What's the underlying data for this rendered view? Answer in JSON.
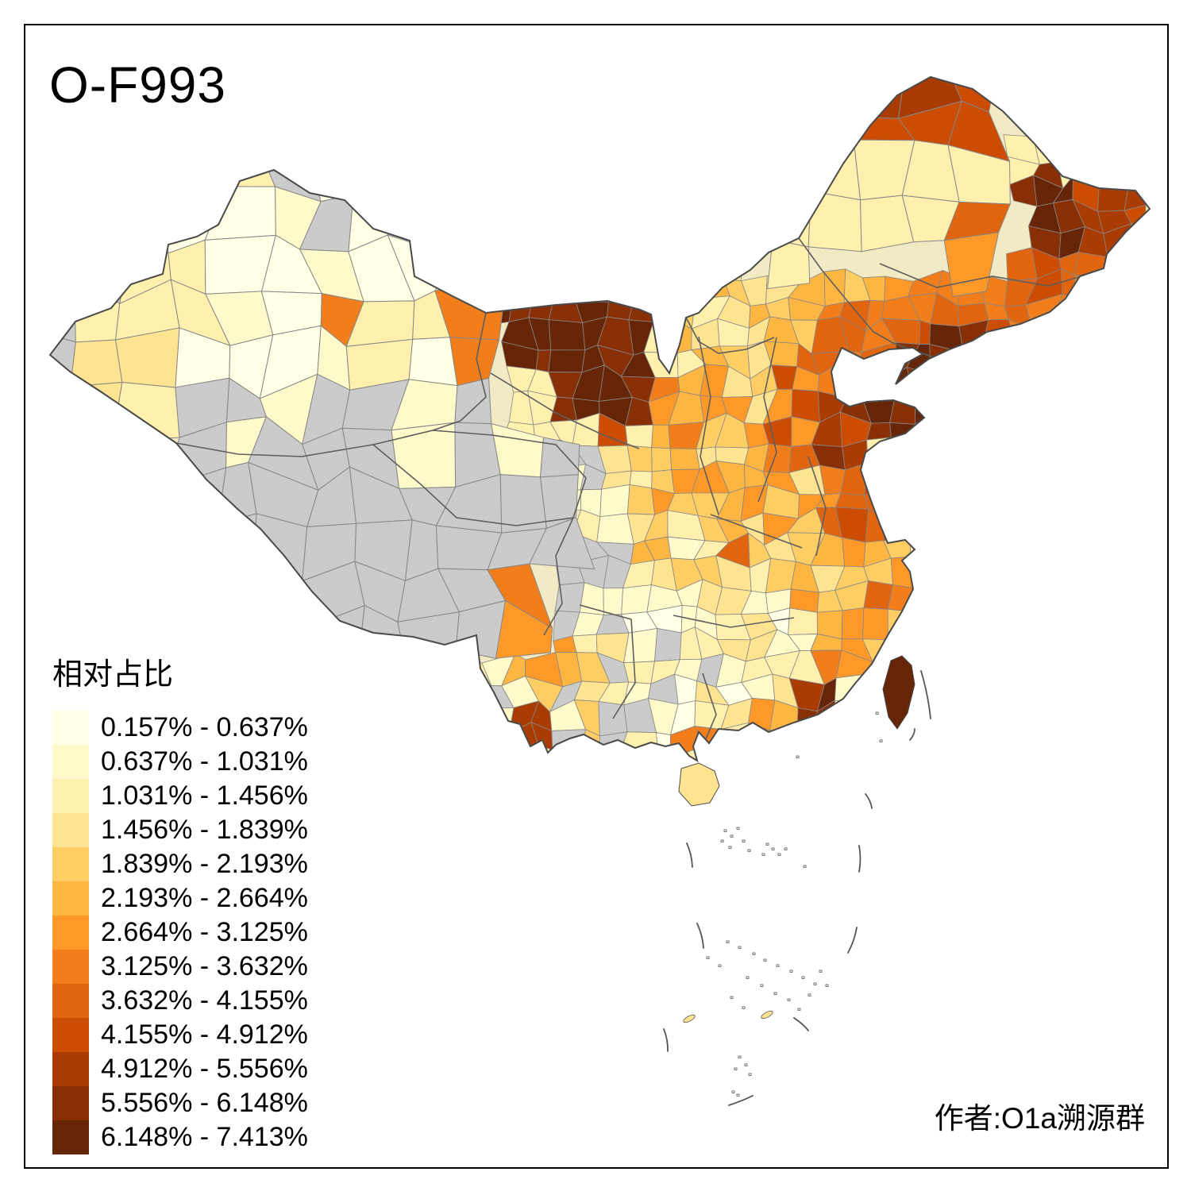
{
  "title": "O-F993",
  "legend": {
    "title": "相对占比",
    "classes": [
      {
        "label": "0.157% - 0.637%",
        "color": "#FFFFE5"
      },
      {
        "label": "0.637% - 1.031%",
        "color": "#FFFACA"
      },
      {
        "label": "1.031% - 1.456%",
        "color": "#FFF0AE"
      },
      {
        "label": "1.456% - 1.839%",
        "color": "#FEE391"
      },
      {
        "label": "1.839% - 2.193%",
        "color": "#FECE65"
      },
      {
        "label": "2.193% - 2.664%",
        "color": "#FEB642"
      },
      {
        "label": "2.664% - 3.125%",
        "color": "#FE9929"
      },
      {
        "label": "3.125% - 3.632%",
        "color": "#F27E1B"
      },
      {
        "label": "3.632% - 4.155%",
        "color": "#E1640E"
      },
      {
        "label": "4.155% - 4.912%",
        "color": "#CC4C02"
      },
      {
        "label": "4.912% - 5.556%",
        "color": "#AA3C03"
      },
      {
        "label": "5.556% - 6.148%",
        "color": "#882F05"
      },
      {
        "label": "6.148% - 7.413%",
        "color": "#662506"
      }
    ]
  },
  "attribution": "作者:O1a溯源群",
  "map": {
    "region": "China prefecture-level choropleth",
    "no_data_color": "#CBCBCB",
    "cell_border_color": "#878787",
    "province_border_color": "#5E5E5E",
    "outline_color": "#4A4A4A",
    "base_fill": "#F2EAC4",
    "sea_mark_color": "#555555",
    "island_fill": "#FFFFFF",
    "frame_color": "#000000",
    "background": "#FFFFFF"
  }
}
